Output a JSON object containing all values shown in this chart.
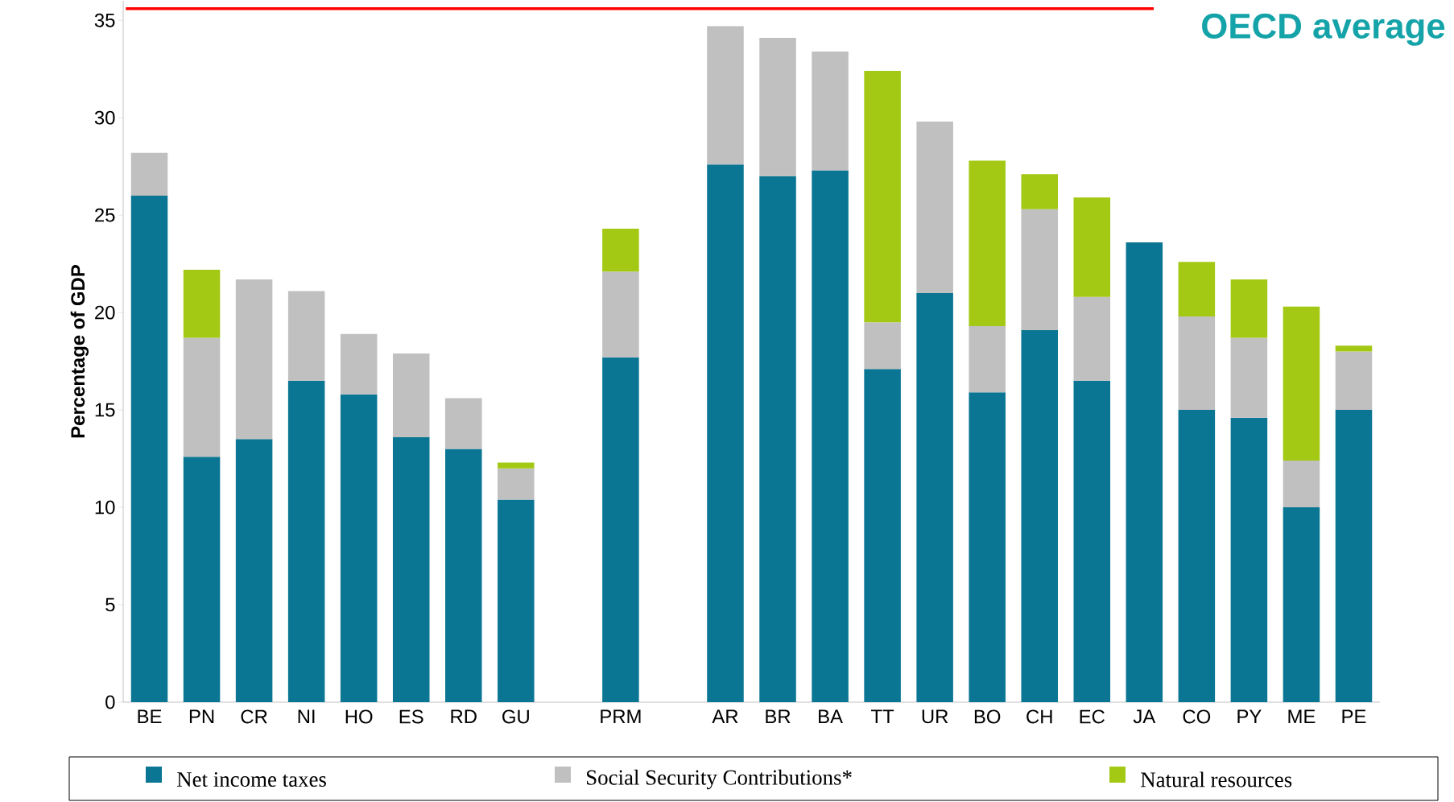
{
  "chart_data": {
    "type": "bar",
    "stacked": true,
    "ylabel": "Percentage of GDP",
    "categories": [
      "BE",
      "PN",
      "CR",
      "NI",
      "HO",
      "ES",
      "RD",
      "GU",
      null,
      "PRM",
      null,
      "AR",
      "BR",
      "BA",
      "TT",
      "UR",
      "BO",
      "CH",
      "EC",
      "JA",
      "CO",
      "PY",
      "ME",
      "PE"
    ],
    "series": [
      {
        "name": "Net income taxes",
        "color": "#0b7694",
        "values": [
          26.0,
          12.6,
          13.5,
          16.5,
          15.8,
          13.6,
          13.0,
          10.4,
          null,
          17.7,
          null,
          27.6,
          27.0,
          27.3,
          17.1,
          21.0,
          15.9,
          19.1,
          16.5,
          23.6,
          15.0,
          14.6,
          10.0,
          15.0
        ]
      },
      {
        "name": "Social Security Contributions*",
        "color": "#c0c0c0",
        "values": [
          2.2,
          6.1,
          8.2,
          4.6,
          3.1,
          4.3,
          2.6,
          1.6,
          null,
          4.4,
          null,
          7.1,
          7.1,
          6.1,
          2.4,
          8.8,
          3.4,
          6.2,
          4.3,
          null,
          4.8,
          4.1,
          2.4,
          3.0
        ]
      },
      {
        "name": "Natural resources",
        "color": "#a3c915",
        "values": [
          null,
          3.5,
          null,
          null,
          null,
          null,
          null,
          0.3,
          null,
          2.2,
          null,
          null,
          null,
          null,
          12.9,
          null,
          8.5,
          1.8,
          5.1,
          null,
          2.8,
          3.0,
          7.9,
          0.3
        ]
      }
    ],
    "ylim": [
      0,
      36
    ],
    "yticks": [
      0,
      5,
      10,
      15,
      20,
      25,
      30,
      35
    ],
    "ref_lines": [
      {
        "axis": "y",
        "value": 35.6,
        "label": "OECD average",
        "color": "#ff0000"
      }
    ],
    "legend": "bottom"
  }
}
